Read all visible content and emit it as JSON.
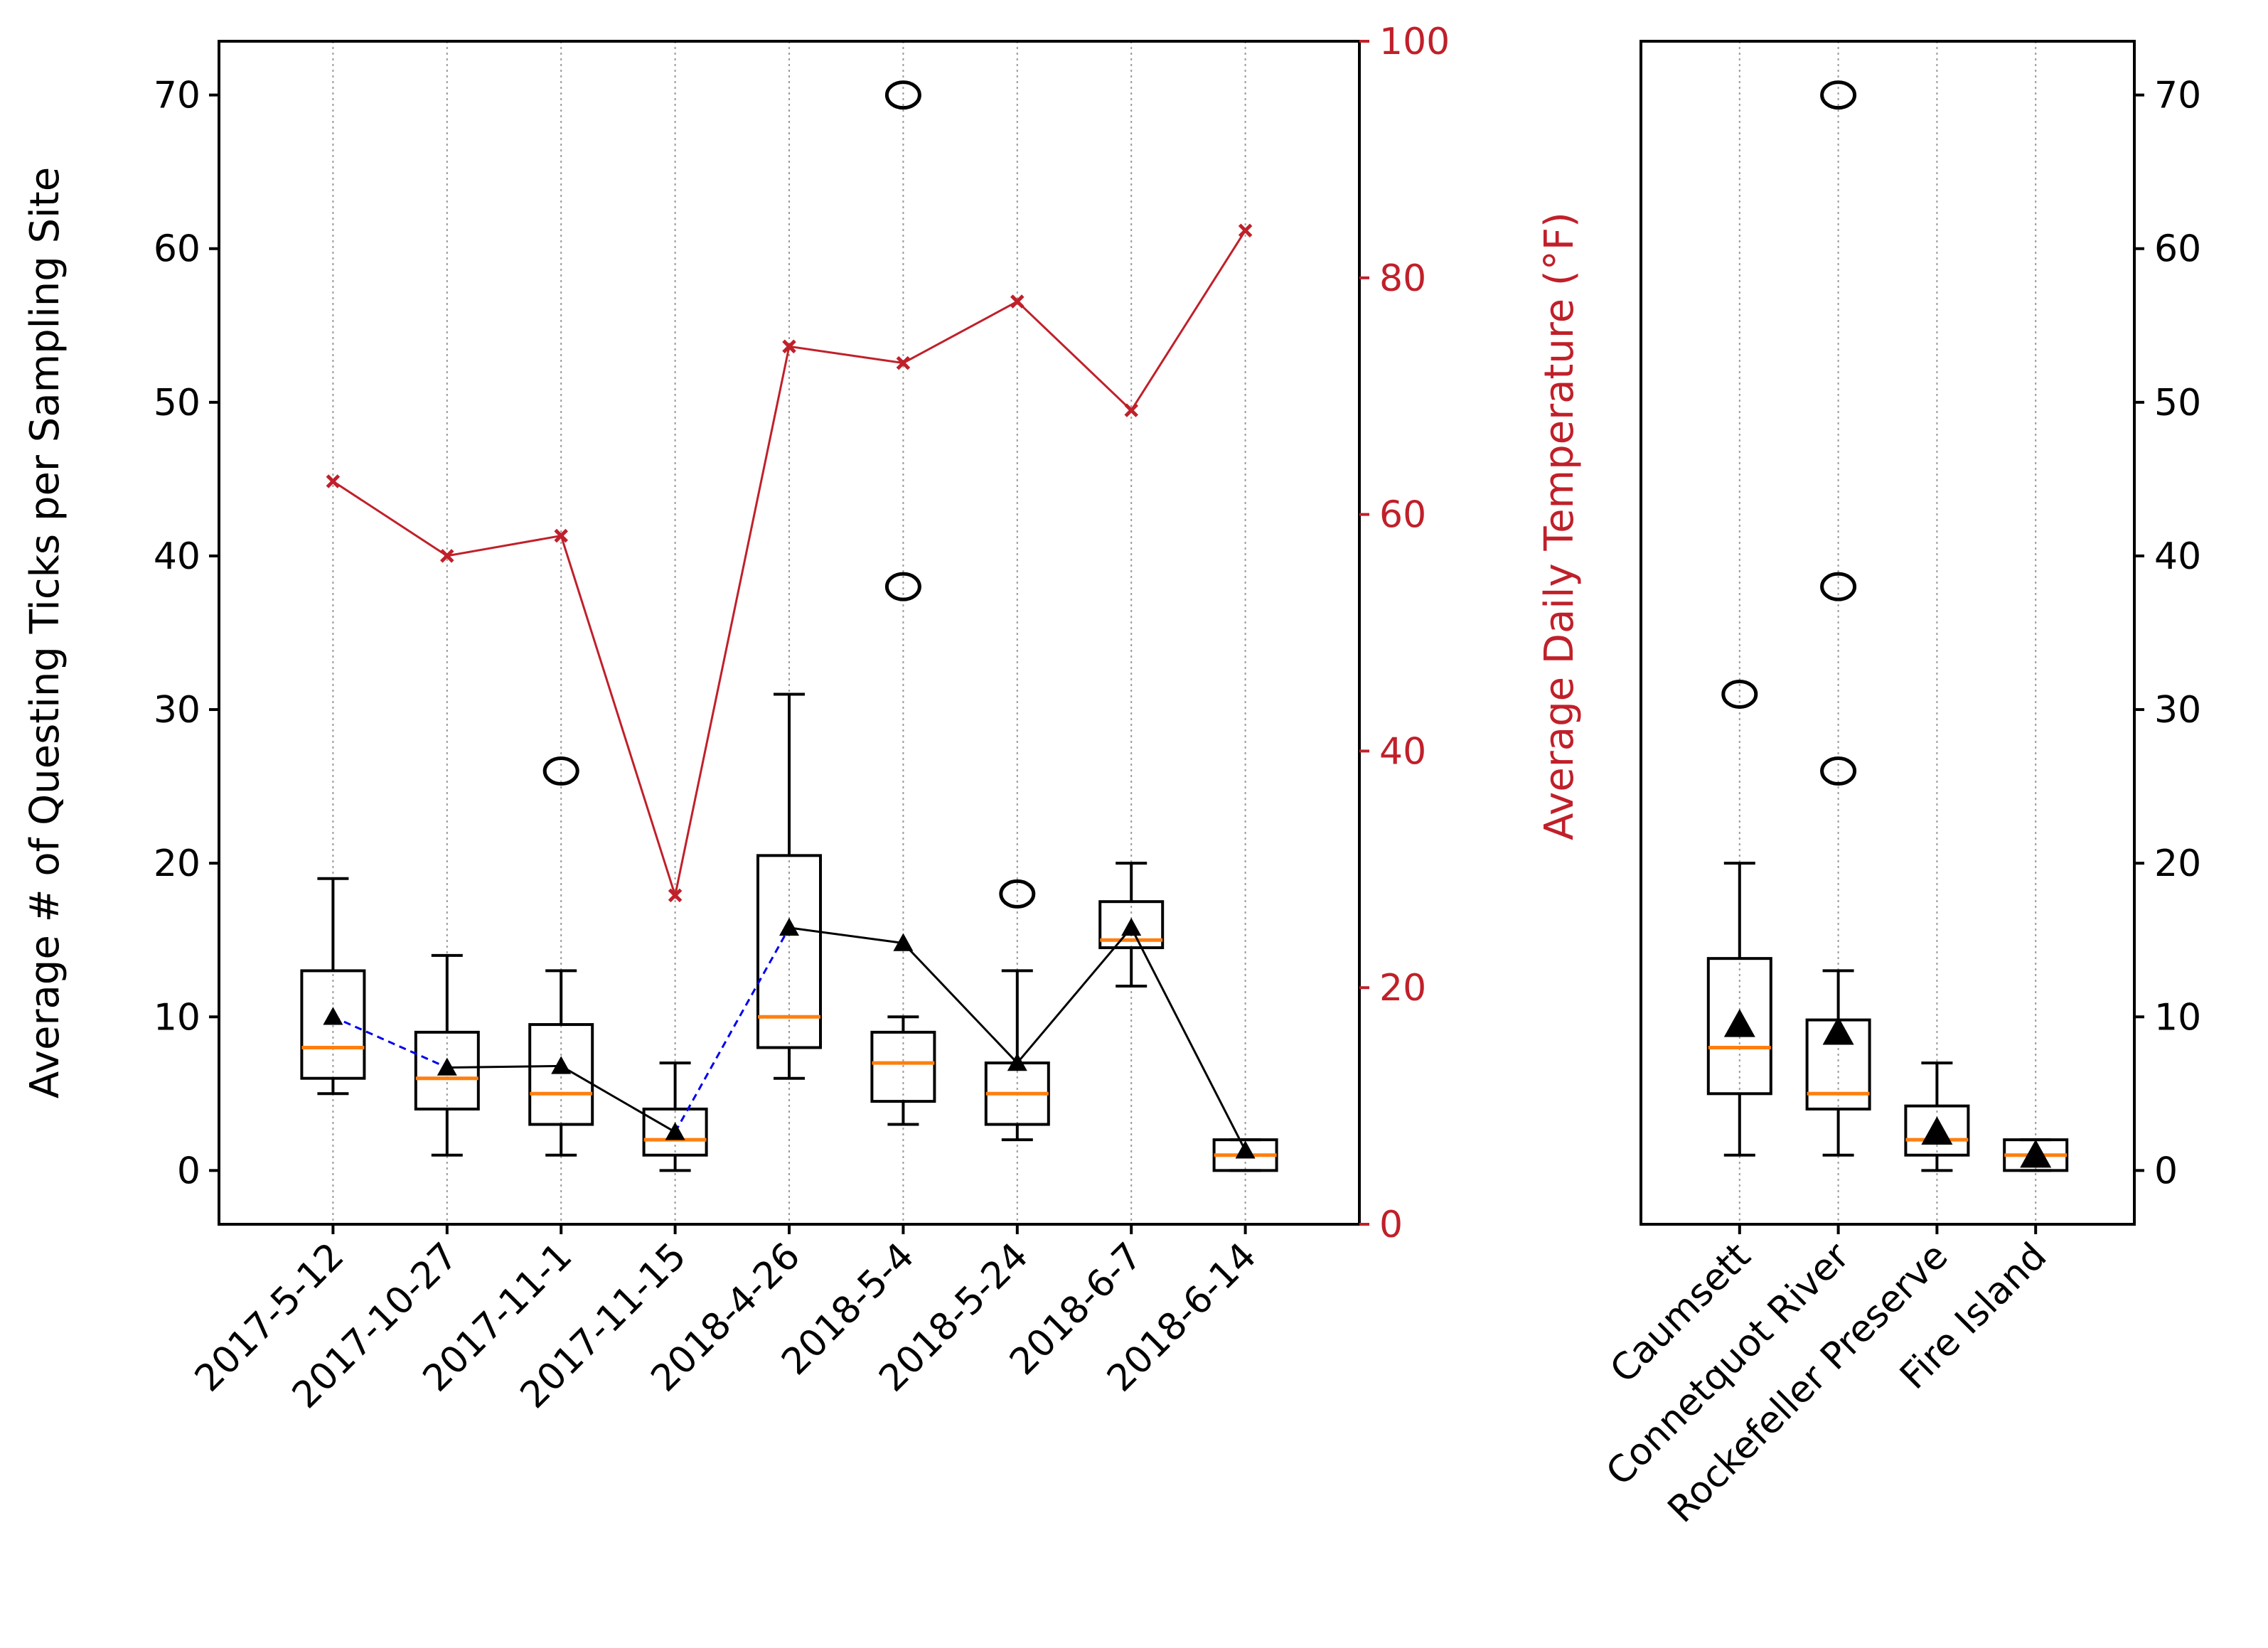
{
  "chart_data": [
    {
      "type": "box",
      "panel": "left",
      "ylabel": "Average # of Questing Ticks per Sampling Site",
      "y2label": "Average Daily Temperature (°F)",
      "ylim": [
        -3.5,
        73.5
      ],
      "y2lim": [
        0,
        100
      ],
      "yticks": [
        0,
        10,
        20,
        30,
        40,
        50,
        60,
        70
      ],
      "y2ticks": [
        0,
        20,
        40,
        60,
        80,
        100
      ],
      "grid": "vertical dotted",
      "categories": [
        "2017-5-12",
        "2017-10-27",
        "2017-11-1",
        "2017-11-15",
        "2018-4-26",
        "2018-5-4",
        "2018-5-24",
        "2018-6-7",
        "2018-6-14"
      ],
      "boxes": [
        {
          "whislo": 5,
          "q1": 6,
          "med": 8,
          "q3": 13,
          "whishi": 19,
          "mean": 10,
          "fliers": []
        },
        {
          "whislo": 1,
          "q1": 4,
          "med": 6,
          "q3": 9,
          "whishi": 14,
          "mean": 6.7,
          "fliers": []
        },
        {
          "whislo": 1,
          "q1": 3,
          "med": 5,
          "q3": 9.5,
          "whishi": 13,
          "mean": 6.8,
          "fliers": [
            26
          ]
        },
        {
          "whislo": 0,
          "q1": 1,
          "med": 2,
          "q3": 4,
          "whishi": 7,
          "mean": 2.5,
          "fliers": []
        },
        {
          "whislo": 6,
          "q1": 8,
          "med": 10,
          "q3": 20.5,
          "whishi": 31,
          "mean": 15.8,
          "fliers": []
        },
        {
          "whislo": 3,
          "q1": 4.5,
          "med": 7,
          "q3": 9,
          "whishi": 10,
          "mean": 14.8,
          "fliers": [
            38,
            70
          ]
        },
        {
          "whislo": 2,
          "q1": 3,
          "med": 5,
          "q3": 7,
          "whishi": 13,
          "mean": 7,
          "fliers": [
            18
          ]
        },
        {
          "whislo": 12,
          "q1": 14.5,
          "med": 15,
          "q3": 17.5,
          "whishi": 20,
          "mean": 15.8,
          "fliers": []
        },
        {
          "whislo": 0,
          "q1": 0,
          "med": 1,
          "q3": 2,
          "whishi": 2,
          "mean": 1.3,
          "fliers": []
        }
      ],
      "mean_line_segments": [
        {
          "from": 0,
          "to": 1,
          "style": "dashed",
          "color": "#0000ee"
        },
        {
          "from": 1,
          "to": 2,
          "style": "solid",
          "color": "#000000"
        },
        {
          "from": 2,
          "to": 3,
          "style": "solid",
          "color": "#000000"
        },
        {
          "from": 3,
          "to": 4,
          "style": "dashed",
          "color": "#0000ee"
        },
        {
          "from": 4,
          "to": 5,
          "style": "solid",
          "color": "#000000"
        },
        {
          "from": 5,
          "to": 6,
          "style": "solid",
          "color": "#000000"
        },
        {
          "from": 6,
          "to": 7,
          "style": "solid",
          "color": "#000000"
        },
        {
          "from": 7,
          "to": 8,
          "style": "solid",
          "color": "#000000"
        }
      ],
      "temperature": {
        "name": "Average Daily Temperature",
        "color": "#c0202a",
        "values": [
          62.8,
          56.5,
          58.2,
          27.8,
          74.2,
          72.8,
          78.0,
          68.8,
          84.0
        ]
      },
      "median_color": "#ff7f0e"
    },
    {
      "type": "box",
      "panel": "right",
      "ylim": [
        -3.5,
        73.5
      ],
      "yticks": [
        0,
        10,
        20,
        30,
        40,
        50,
        60,
        70
      ],
      "grid": "vertical dotted",
      "categories": [
        "Caumsett",
        "Connetquot River",
        "Rockefeller Preserve",
        "Fire Island"
      ],
      "boxes": [
        {
          "whislo": 1,
          "q1": 5,
          "med": 8,
          "q3": 13.8,
          "whishi": 20,
          "mean": 9.5,
          "fliers": [
            31
          ]
        },
        {
          "whislo": 1,
          "q1": 4,
          "med": 5,
          "q3": 9.8,
          "whishi": 13,
          "mean": 9,
          "fliers": [
            26,
            38,
            70
          ]
        },
        {
          "whislo": 0,
          "q1": 1,
          "med": 2,
          "q3": 4.2,
          "whishi": 7,
          "mean": 2.5,
          "fliers": []
        },
        {
          "whislo": 0,
          "q1": 0,
          "med": 1,
          "q3": 2,
          "whishi": 2,
          "mean": 1,
          "fliers": []
        }
      ],
      "median_color": "#ff7f0e"
    }
  ]
}
